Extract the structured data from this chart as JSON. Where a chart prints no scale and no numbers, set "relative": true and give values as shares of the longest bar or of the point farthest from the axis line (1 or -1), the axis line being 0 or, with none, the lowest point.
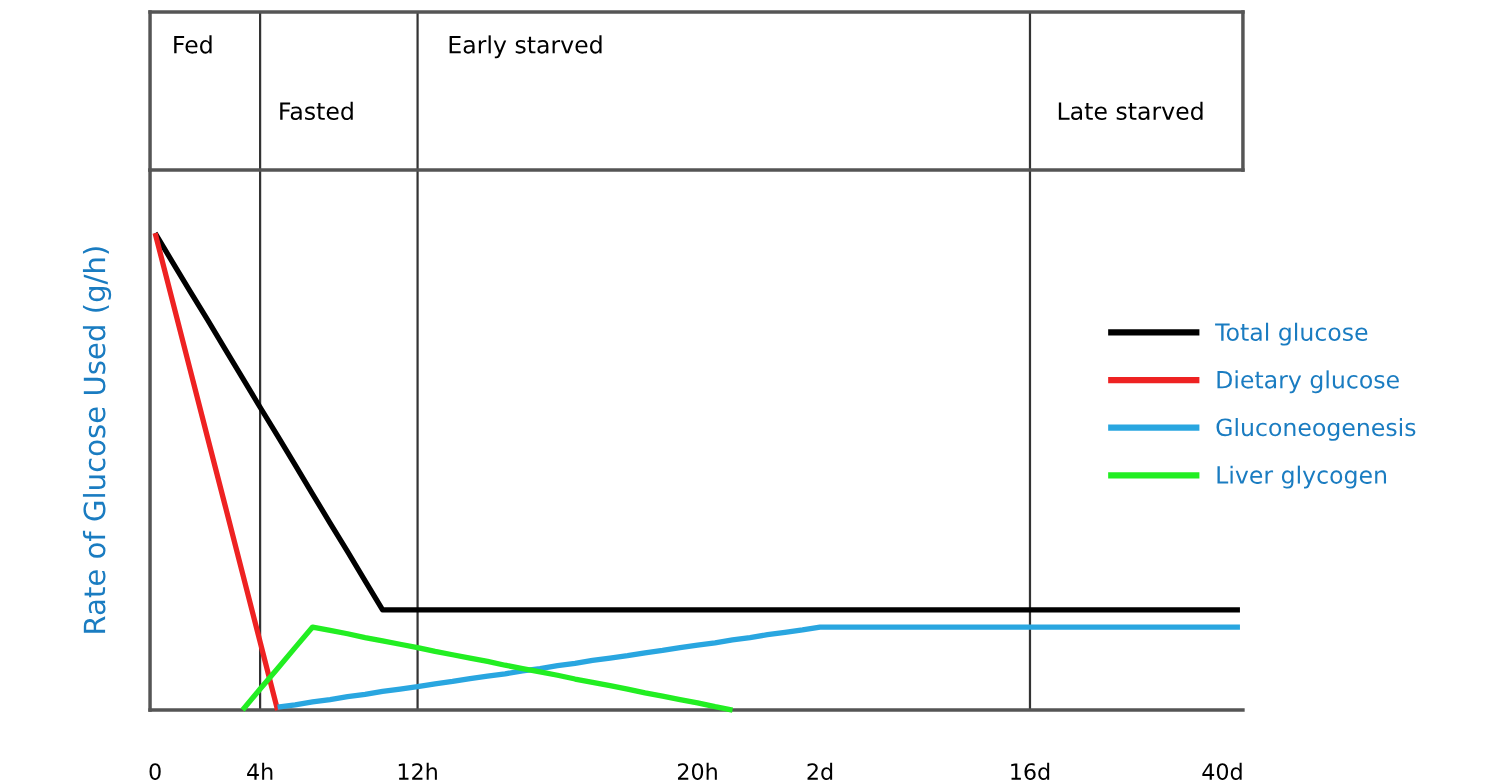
{
  "chart_data": {
    "type": "line",
    "relative": true,
    "ylabel": "Rate of Glucose Used (g/h)",
    "categories": [
      "0",
      null,
      null,
      null,
      null,
      null,
      "4h",
      null,
      null,
      null,
      null,
      null,
      null,
      null,
      null,
      "12h",
      null,
      null,
      null,
      null,
      null,
      null,
      null,
      null,
      null,
      null,
      null,
      null,
      null,
      null,
      null,
      "20h",
      null,
      null,
      null,
      null,
      null,
      null,
      "2d",
      null,
      null,
      null,
      null,
      null,
      null,
      null,
      null,
      null,
      null,
      null,
      "16d",
      null,
      null,
      null,
      null,
      null,
      null,
      null,
      null,
      null,
      null,
      "40d",
      null
    ],
    "series": [
      {
        "name": "Total glucose",
        "color": "#000000",
        "values": [
          1,
          0.939,
          0.878,
          0.818,
          0.757,
          0.696,
          0.635,
          0.575,
          0.514,
          0.453,
          0.392,
          0.332,
          0.271,
          0.21,
          0.21,
          0.21,
          0.21,
          0.21,
          0.21,
          0.21,
          0.21,
          0.21,
          0.21,
          0.21,
          0.21,
          0.21,
          0.21,
          0.21,
          0.21,
          0.21,
          0.21,
          0.21,
          0.21,
          0.21,
          0.21,
          0.21,
          0.21,
          0.21,
          0.21,
          0.21,
          0.21,
          0.21,
          0.21,
          0.21,
          0.21,
          0.21,
          0.21,
          0.21,
          0.21,
          0.21,
          0.21,
          0.21,
          0.21,
          0.21,
          0.21,
          0.21,
          0.21,
          0.21,
          0.21,
          0.21,
          0.21,
          0.21,
          0.21
        ]
      },
      {
        "name": "Dietary glucose",
        "color": "#ee2222",
        "values": [
          1,
          0.857,
          0.714,
          0.571,
          0.429,
          0.286,
          0.143,
          0,
          null,
          null,
          null,
          null,
          null,
          null,
          null,
          null,
          null,
          null,
          null,
          null,
          null,
          null,
          null,
          null,
          null,
          null,
          null,
          null,
          null,
          null,
          null,
          null,
          null,
          null,
          null,
          null,
          null,
          null,
          null,
          null,
          null,
          null,
          null,
          null,
          null,
          null,
          null,
          null,
          null,
          null,
          null,
          null,
          null,
          null,
          null,
          null,
          null,
          null,
          null,
          null,
          null,
          null,
          null
        ]
      },
      {
        "name": "Gluconeogenesis",
        "color": "#29a6e0",
        "values": [
          null,
          null,
          null,
          null,
          null,
          null,
          null,
          0.006,
          0.011,
          0.017,
          0.022,
          0.028,
          0.033,
          0.039,
          0.044,
          0.049,
          0.055,
          0.06,
          0.066,
          0.071,
          0.076,
          0.082,
          0.087,
          0.093,
          0.098,
          0.104,
          0.109,
          0.114,
          0.12,
          0.125,
          0.131,
          0.136,
          0.141,
          0.147,
          0.152,
          0.158,
          0.163,
          0.168,
          0.174,
          0.174,
          0.174,
          0.174,
          0.174,
          0.174,
          0.174,
          0.174,
          0.174,
          0.174,
          0.174,
          0.174,
          0.174,
          0.174,
          0.174,
          0.174,
          0.174,
          0.174,
          0.174,
          0.174,
          0.174,
          0.174,
          0.174,
          0.174,
          0.174
        ]
      },
      {
        "name": "Liver glycogen",
        "color": "#22ee22",
        "values": [
          null,
          null,
          null,
          null,
          null,
          0,
          0.044,
          0.087,
          0.131,
          0.174,
          0.167,
          0.16,
          0.152,
          0.145,
          0.138,
          0.131,
          0.123,
          0.116,
          0.109,
          0.102,
          0.094,
          0.087,
          0.08,
          0.073,
          0.065,
          0.058,
          0.051,
          0.044,
          0.036,
          0.029,
          0.022,
          0.015,
          0.007,
          0,
          null,
          null,
          null,
          null,
          null,
          null,
          null,
          null,
          null,
          null,
          null,
          null,
          null,
          null,
          null,
          null,
          null,
          null,
          null,
          null,
          null,
          null,
          null,
          null,
          null,
          null,
          null,
          null,
          null
        ]
      }
    ],
    "ref_lines": [
      {
        "axis": "x",
        "value": "4h",
        "color": "#333333"
      },
      {
        "axis": "x",
        "value": "12h",
        "color": "#333333"
      },
      {
        "axis": "x",
        "value": "16d",
        "color": "#333333"
      }
    ],
    "annotations": [
      "Fed",
      "Fasted",
      "Early starved",
      "Late starved"
    ],
    "legend": "right",
    "grid": false,
    "marker": "none",
    "line_style": "solid"
  }
}
